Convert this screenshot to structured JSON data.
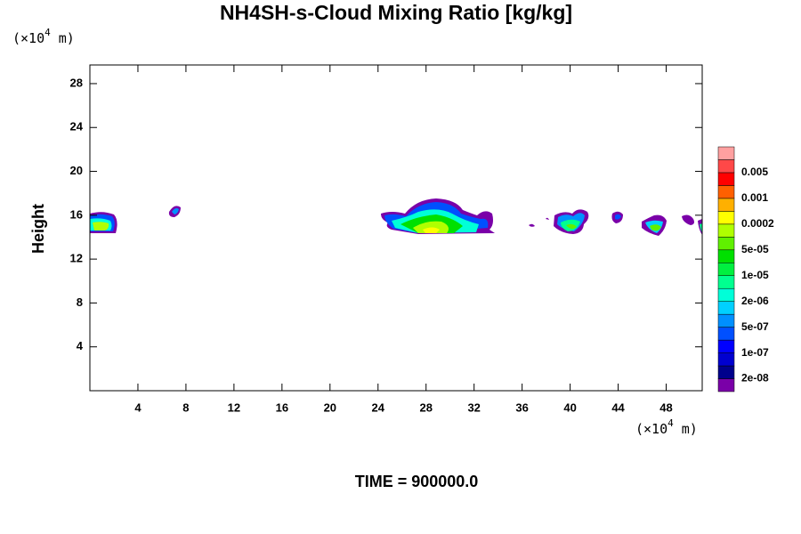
{
  "chart_data": {
    "type": "contour",
    "title": "NH4SH-s-Cloud Mixing Ratio [kg/kg]",
    "y_label": "Height",
    "x_unit": {
      "base": "(×10",
      "exponent": "4",
      "suffix": " m)"
    },
    "y_unit": {
      "base": "(×10",
      "exponent": "4",
      "suffix": " m)"
    },
    "annotation": "TIME = 900000.0",
    "xlim": [
      0,
      51
    ],
    "ylim": [
      0,
      29.7
    ],
    "xticks": [
      4,
      8,
      12,
      16,
      20,
      24,
      28,
      32,
      36,
      40,
      44,
      48
    ],
    "yticks": [
      4,
      8,
      12,
      16,
      20,
      24,
      28
    ],
    "colorbar": {
      "colors": [
        "#7a00a8",
        "#00008c",
        "#0000d0",
        "#0000ff",
        "#0050ff",
        "#0090ff",
        "#00d0ff",
        "#00ffd8",
        "#00ff90",
        "#00f040",
        "#00e000",
        "#60f000",
        "#b0ff00",
        "#ffff00",
        "#ffb000",
        "#ff6000",
        "#ff0000",
        "#ff4848",
        "#ffa0a0"
      ],
      "labels": [
        "2e-08",
        "1e-07",
        "5e-07",
        "2e-06",
        "1e-05",
        "5e-05",
        "0.0002",
        "0.001",
        "0.005"
      ]
    }
  }
}
